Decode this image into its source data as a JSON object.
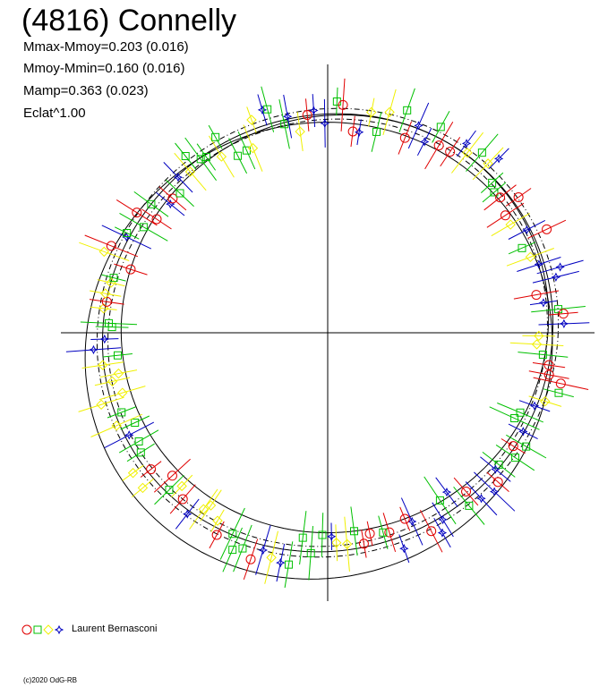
{
  "title": "(4816) Connelly",
  "stats": {
    "line1": "Mmax-Mmoy=0.203 (0.016)",
    "line2": "Mmoy-Mmin=0.160 (0.016)",
    "line3": "Mamp=0.363 (0.023)",
    "line4": "Eclat^1.00"
  },
  "legend": {
    "observer": "Laurent Bernasconi",
    "markers": [
      {
        "shape": "circle",
        "color": "#e00000"
      },
      {
        "shape": "square",
        "color": "#00c000"
      },
      {
        "shape": "diamond",
        "color": "#f0f000"
      },
      {
        "shape": "star",
        "color": "#0000c0"
      }
    ]
  },
  "copyright": "(c)2020 OdG-RB",
  "chart_data": {
    "type": "scatter",
    "description_type": "polar lightcurve",
    "series_colors": [
      "#e00000",
      "#00c000",
      "#f0f000",
      "#0000c0"
    ],
    "mmax_minus_mmoy": 0.203,
    "mmoy_minus_mmin": 0.16,
    "mamp": 0.363,
    "eclat_exponent": 1.0,
    "axes": "cross through center",
    "grid": false
  }
}
